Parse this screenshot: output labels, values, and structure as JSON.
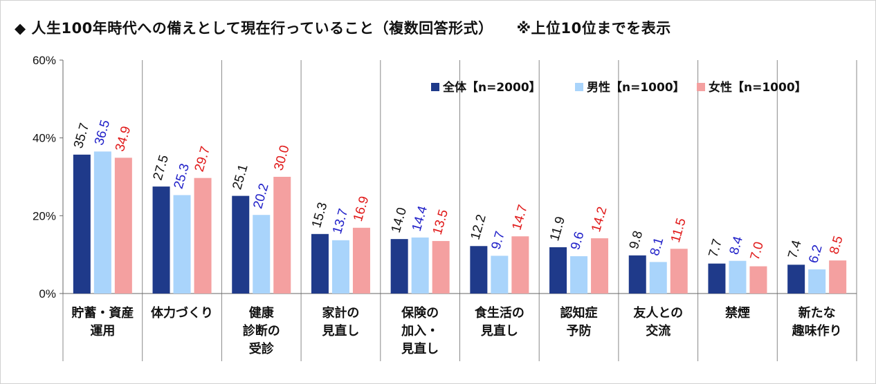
{
  "title": {
    "main": "◆ 人生100年時代への備えとして現在行っていること（複数回答形式）",
    "note": "※上位10位までを表示"
  },
  "chart_data": {
    "type": "bar",
    "categories": [
      [
        "貯蓄・資産",
        "運用"
      ],
      [
        "体力づくり"
      ],
      [
        "健康",
        "診断の",
        "受診"
      ],
      [
        "家計の",
        "見直し"
      ],
      [
        "保険の",
        "加入・",
        "見直し"
      ],
      [
        "食生活の",
        "見直し"
      ],
      [
        "認知症",
        "予防"
      ],
      [
        "友人との",
        "交流"
      ],
      [
        "禁煙"
      ],
      [
        "新たな",
        "趣味作り"
      ]
    ],
    "series": [
      {
        "name": "全体【n=2000】",
        "values": [
          35.7,
          27.5,
          25.1,
          15.3,
          14.0,
          12.2,
          11.9,
          9.8,
          7.7,
          7.4
        ],
        "color": "#1f3a8a",
        "label_color": "#111111"
      },
      {
        "name": "男性【n=1000】",
        "values": [
          36.5,
          25.3,
          20.2,
          13.7,
          14.4,
          9.7,
          9.6,
          8.1,
          8.4,
          6.2
        ],
        "color": "#a9d4fb",
        "label_color": "#2020c8"
      },
      {
        "name": "女性【n=1000】",
        "values": [
          34.9,
          29.7,
          30.0,
          16.9,
          13.5,
          14.7,
          14.2,
          11.5,
          7.0,
          8.5
        ],
        "color": "#f4a0a0",
        "label_color": "#e01818"
      }
    ],
    "yticks": [
      "0%",
      "20%",
      "40%",
      "60%"
    ],
    "ylim": [
      0,
      60
    ],
    "legend_position": "top-right"
  }
}
